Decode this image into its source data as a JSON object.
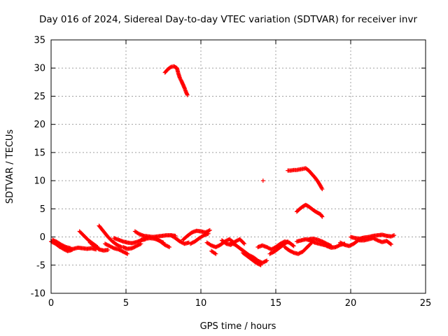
{
  "chart_data": {
    "type": "scatter",
    "title": "Day 016 of 2024, Sidereal Day-to-day VTEC variation (SDTVAR) for receiver invr",
    "xlabel": "GPS time / hours",
    "ylabel": "SDTVAR / TECUs",
    "xlim": [
      0,
      25
    ],
    "ylim": [
      -10,
      35
    ],
    "xticks": [
      0,
      5,
      10,
      15,
      20,
      25
    ],
    "yticks": [
      -10,
      -5,
      0,
      5,
      10,
      15,
      20,
      25,
      30,
      35
    ],
    "xtick_labels": [
      "0",
      "5",
      "10",
      "15",
      "20",
      "25"
    ],
    "ytick_labels": [
      "-10",
      "-5",
      "0",
      "5",
      "10",
      "15",
      "20",
      "25",
      "30",
      "35"
    ],
    "grid": true,
    "marker": "+",
    "color": "#ff0000",
    "series": [
      {
        "name": "SDTVAR",
        "segments": [
          {
            "x": [
              0.0,
              0.3,
              0.6,
              0.9,
              1.2,
              1.5,
              1.8,
              2.1,
              2.4,
              2.7,
              3.0
            ],
            "y": [
              -0.8,
              -1.2,
              -1.8,
              -2.0,
              -2.2,
              -2.1,
              -1.9,
              -2.0,
              -2.1,
              -2.0,
              -2.2
            ]
          },
          {
            "x": [
              0.1,
              0.4,
              0.7,
              1.0,
              1.3
            ],
            "y": [
              -0.5,
              -0.9,
              -1.4,
              -1.8,
              -2.0
            ]
          },
          {
            "x": [
              0.5,
              0.8,
              1.1,
              1.4
            ],
            "y": [
              -1.5,
              -2.1,
              -2.5,
              -2.3
            ]
          },
          {
            "x": [
              1.9,
              2.2,
              2.5,
              2.8,
              3.1
            ],
            "y": [
              1.0,
              0.2,
              -0.6,
              -1.2,
              -1.8
            ]
          },
          {
            "x": [
              2.6,
              2.9,
              3.2,
              3.5,
              3.8
            ],
            "y": [
              -1.0,
              -1.6,
              -2.2,
              -2.4,
              -2.3
            ]
          },
          {
            "x": [
              3.2,
              3.5,
              3.8,
              4.1,
              4.4,
              4.7
            ],
            "y": [
              2.0,
              1.0,
              0.0,
              -0.8,
              -1.4,
              -1.8
            ]
          },
          {
            "x": [
              3.6,
              3.9,
              4.2,
              4.5,
              4.8,
              5.1
            ],
            "y": [
              -1.2,
              -1.6,
              -2.0,
              -2.2,
              -2.6,
              -3.0
            ]
          },
          {
            "x": [
              4.2,
              4.5,
              4.8,
              5.1,
              5.4,
              5.7,
              6.0,
              6.3
            ],
            "y": [
              -0.2,
              -0.5,
              -0.8,
              -1.0,
              -1.1,
              -0.9,
              -0.6,
              -0.4
            ]
          },
          {
            "x": [
              4.8,
              5.1,
              5.4,
              5.7,
              6.0
            ],
            "y": [
              -1.8,
              -2.1,
              -2.0,
              -1.6,
              -1.2
            ]
          },
          {
            "x": [
              5.6,
              5.9,
              6.2,
              6.5,
              6.8,
              7.1,
              7.4,
              7.7,
              8.0,
              8.3
            ],
            "y": [
              1.0,
              0.5,
              0.2,
              0.1,
              0.0,
              0.1,
              0.2,
              0.3,
              0.3,
              0.2
            ]
          },
          {
            "x": [
              6.0,
              6.3,
              6.6,
              6.9,
              7.2,
              7.5
            ],
            "y": [
              -0.5,
              -0.3,
              -0.2,
              -0.3,
              -0.6,
              -1.0
            ]
          },
          {
            "x": [
              7.0,
              7.3,
              7.6,
              7.9
            ],
            "y": [
              -0.3,
              -0.8,
              -1.4,
              -1.8
            ]
          },
          {
            "x": [
              8.0,
              8.3,
              8.6,
              8.9,
              9.2
            ],
            "y": [
              0.3,
              -0.2,
              -0.8,
              -1.2,
              -1.0
            ]
          },
          {
            "x": [
              8.8,
              9.1,
              9.4,
              9.7,
              10.0,
              10.3,
              10.6
            ],
            "y": [
              -0.5,
              0.2,
              0.8,
              1.1,
              1.0,
              0.8,
              1.2
            ]
          },
          {
            "x": [
              9.3,
              9.6,
              9.9,
              10.2,
              10.5
            ],
            "y": [
              -1.2,
              -0.8,
              -0.2,
              0.3,
              0.6
            ]
          },
          {
            "x": [
              10.4,
              10.7,
              11.0,
              11.3,
              11.6,
              11.9,
              12.2
            ],
            "y": [
              -1.0,
              -1.5,
              -1.8,
              -1.4,
              -0.8,
              -0.4,
              -1.0
            ]
          },
          {
            "x": [
              10.7,
              11.0
            ],
            "y": [
              -2.5,
              -3.0
            ]
          },
          {
            "x": [
              11.4,
              11.7,
              12.0,
              12.3,
              12.6,
              12.9
            ],
            "y": [
              -0.6,
              -1.2,
              -1.4,
              -0.8,
              -0.4,
              -1.2
            ]
          },
          {
            "x": [
              12.0,
              12.3,
              12.6,
              12.9,
              13.2,
              13.5,
              13.8,
              14.1,
              14.4
            ],
            "y": [
              -1.0,
              -1.4,
              -2.0,
              -2.6,
              -3.2,
              -3.6,
              -4.2,
              -4.6,
              -4.2
            ]
          },
          {
            "x": [
              12.8,
              13.1,
              13.4,
              13.7,
              14.0
            ],
            "y": [
              -2.8,
              -3.4,
              -4.0,
              -4.6,
              -5.0
            ]
          },
          {
            "x": [
              13.8,
              14.1,
              14.4,
              14.7,
              15.0,
              15.3,
              15.6,
              15.9,
              16.2
            ],
            "y": [
              -1.8,
              -1.5,
              -1.8,
              -2.2,
              -1.8,
              -1.2,
              -0.8,
              -1.0,
              -1.6
            ]
          },
          {
            "x": [
              14.6,
              14.9,
              15.2,
              15.5,
              15.8
            ],
            "y": [
              -3.0,
              -2.6,
              -2.0,
              -1.4,
              -0.8
            ]
          },
          {
            "x": [
              15.6,
              15.9,
              16.2,
              16.5,
              16.8,
              17.1,
              17.4
            ],
            "y": [
              -1.8,
              -2.4,
              -2.8,
              -3.0,
              -2.6,
              -1.8,
              -1.0
            ]
          },
          {
            "x": [
              16.4,
              16.7,
              17.0,
              17.3,
              17.6,
              17.9,
              18.2,
              18.5
            ],
            "y": [
              -0.8,
              -0.6,
              -0.4,
              -0.6,
              -1.0,
              -1.2,
              -1.4,
              -1.6
            ]
          },
          {
            "x": [
              17.2,
              17.5,
              17.8,
              18.1,
              18.4,
              18.7
            ],
            "y": [
              -0.4,
              -0.3,
              -0.5,
              -0.8,
              -1.2,
              -1.6
            ]
          },
          {
            "x": [
              18.4,
              18.7,
              19.0,
              19.3,
              19.6
            ],
            "y": [
              -1.6,
              -1.9,
              -1.8,
              -1.4,
              -1.2
            ]
          },
          {
            "x": [
              19.3,
              19.6,
              19.9,
              20.2,
              20.5,
              20.8
            ],
            "y": [
              -1.0,
              -1.4,
              -1.6,
              -1.2,
              -0.6,
              -0.2
            ]
          },
          {
            "x": [
              20.0,
              20.3,
              20.6,
              20.9,
              21.2,
              21.5,
              21.8,
              22.1,
              22.4,
              22.7,
              22.9
            ],
            "y": [
              0.0,
              -0.2,
              -0.3,
              -0.1,
              0.0,
              0.2,
              0.3,
              0.4,
              0.2,
              0.1,
              0.3
            ]
          },
          {
            "x": [
              20.6,
              20.9,
              21.2,
              21.5,
              21.8,
              22.1,
              22.4,
              22.7
            ],
            "y": [
              -0.6,
              -0.6,
              -0.4,
              -0.2,
              -0.6,
              -0.9,
              -0.7,
              -1.3
            ]
          },
          {
            "x": [
              7.6,
              7.8,
              8.0,
              8.2,
              8.4,
              8.5,
              8.6,
              8.7,
              8.8,
              8.9,
              9.0,
              9.1
            ],
            "y": [
              29.2,
              29.8,
              30.2,
              30.3,
              30.0,
              29.0,
              28.2,
              27.7,
              27.1,
              26.5,
              25.8,
              25.2
            ]
          },
          {
            "x": [
              14.15
            ],
            "y": [
              10.0
            ]
          },
          {
            "x": [
              15.8,
              16.0,
              16.2,
              16.4,
              16.6,
              16.8,
              17.0,
              17.2,
              17.4,
              17.6,
              17.8,
              18.0,
              18.1
            ],
            "y": [
              11.8,
              11.8,
              11.9,
              11.9,
              12.0,
              12.1,
              12.2,
              11.8,
              11.2,
              10.6,
              9.9,
              9.0,
              8.5
            ]
          },
          {
            "x": [
              16.4,
              16.6,
              16.8,
              17.0,
              17.2,
              17.4,
              17.6,
              17.8,
              18.0,
              18.1
            ],
            "y": [
              4.5,
              5.0,
              5.4,
              5.7,
              5.4,
              5.0,
              4.6,
              4.3,
              4.0,
              3.6
            ]
          }
        ]
      }
    ]
  }
}
